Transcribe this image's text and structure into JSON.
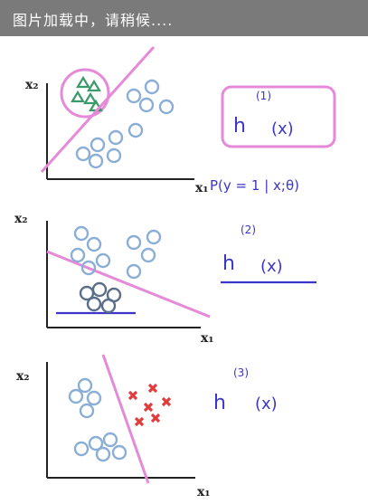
{
  "loading": {
    "text": "图片加载中，请稍候...."
  },
  "panels": [
    {
      "y_label": "x₂",
      "x_label": "x₁",
      "classifier_top": "(1)",
      "classifier_bottom": "h",
      "classifier_arg": "(x)",
      "probability": "P(y = 1 | x;θ)"
    },
    {
      "y_label": "x₂",
      "x_label": "x₁",
      "classifier_top": "(2)",
      "classifier_bottom": "h",
      "classifier_arg": "(x)"
    },
    {
      "y_label": "x₂",
      "x_label": "x₁",
      "classifier_top": "(3)",
      "classifier_bottom": "h",
      "classifier_arg": "(x)"
    }
  ],
  "colors": {
    "pink": "#e58ad8",
    "blue_ink": "#3b36c7",
    "circle": "#8aaed6",
    "triangle": "#3a9a6a",
    "cross": "#e23b3b"
  }
}
